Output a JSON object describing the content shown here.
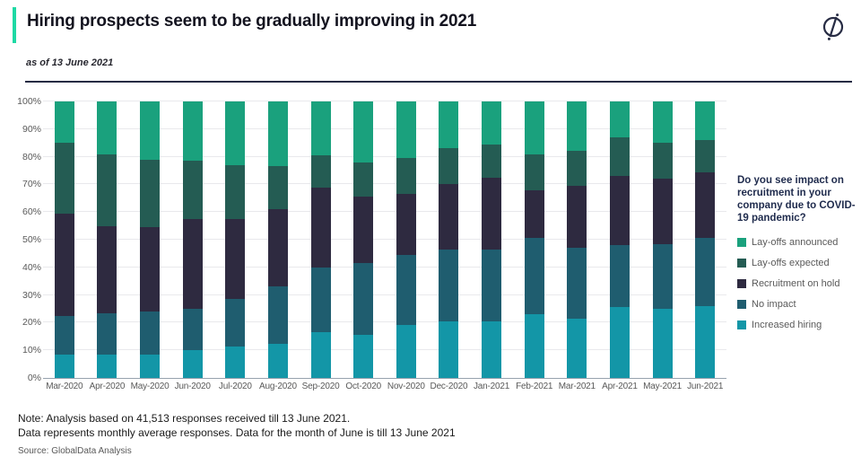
{
  "header": {
    "title": "Hiring prospects seem to be gradually improving in 2021",
    "subtitle": "as of 13 June 2021",
    "accent_color": "#1ed9a4",
    "logo_icon": "globaldata-compass-icon",
    "logo_color": "#272c44"
  },
  "chart_data": {
    "type": "bar",
    "stacked": true,
    "stacked_total": 100,
    "title": "Do you see impact on recruitment in your company due to COVID-19 pandemic?",
    "categories": [
      "Mar-2020",
      "Apr-2020",
      "May-2020",
      "Jun-2020",
      "Jul-2020",
      "Aug-2020",
      "Sep-2020",
      "Oct-2020",
      "Nov-2020",
      "Dec-2020",
      "Jan-2021",
      "Feb-2021",
      "Mar-2021",
      "Apr-2021",
      "May-2021",
      "Jun-2021"
    ],
    "series": [
      {
        "name": "Lay-offs announced",
        "color": "#1aa17d",
        "values": [
          15,
          19,
          21,
          21.5,
          23,
          23.5,
          19.5,
          22,
          20.5,
          17,
          15.5,
          19,
          18,
          13,
          15,
          14
        ]
      },
      {
        "name": "Lay-offs expected",
        "color": "#245c53",
        "values": [
          25.5,
          26,
          24.5,
          21,
          19.5,
          15.5,
          11.5,
          12.5,
          13,
          13,
          12,
          13,
          12.5,
          14,
          13,
          11.5
        ]
      },
      {
        "name": "Recruitment on hold",
        "color": "#2e2a40",
        "values": [
          37,
          31.5,
          30.5,
          32.5,
          29,
          28,
          29,
          24,
          22,
          23.5,
          26,
          17.5,
          22.5,
          25,
          23.5,
          24
        ]
      },
      {
        "name": "No impact",
        "color": "#1f5d6f",
        "values": [
          14,
          15,
          15.5,
          15,
          17,
          20.5,
          23.5,
          26,
          25.5,
          26,
          26,
          27.5,
          25.5,
          22.5,
          23.5,
          24.5
        ]
      },
      {
        "name": "Increased hiring",
        "color": "#1396a7",
        "values": [
          8.5,
          8.5,
          8.5,
          10,
          11.5,
          12.5,
          16.5,
          15.5,
          19,
          20.5,
          20.5,
          23,
          21.5,
          25.5,
          25,
          26
        ]
      }
    ],
    "y_axis": {
      "min": 0,
      "max": 100,
      "tick_step": 10,
      "ticks": [
        "0%",
        "10%",
        "20%",
        "30%",
        "40%",
        "50%",
        "60%",
        "70%",
        "80%",
        "90%",
        "100%"
      ],
      "grid": true
    },
    "legend": {
      "position": "right",
      "title": "Do you see impact on recruitment in your company due to COVID-19 pandemic?"
    }
  },
  "footer": {
    "note_line1": "Note: Analysis based on 41,513 responses received till 13 June 2021.",
    "note_line2": "Data represents monthly average responses. Data for the month of June is till 13 June 2021",
    "source": "Source: GlobalData Analysis"
  }
}
